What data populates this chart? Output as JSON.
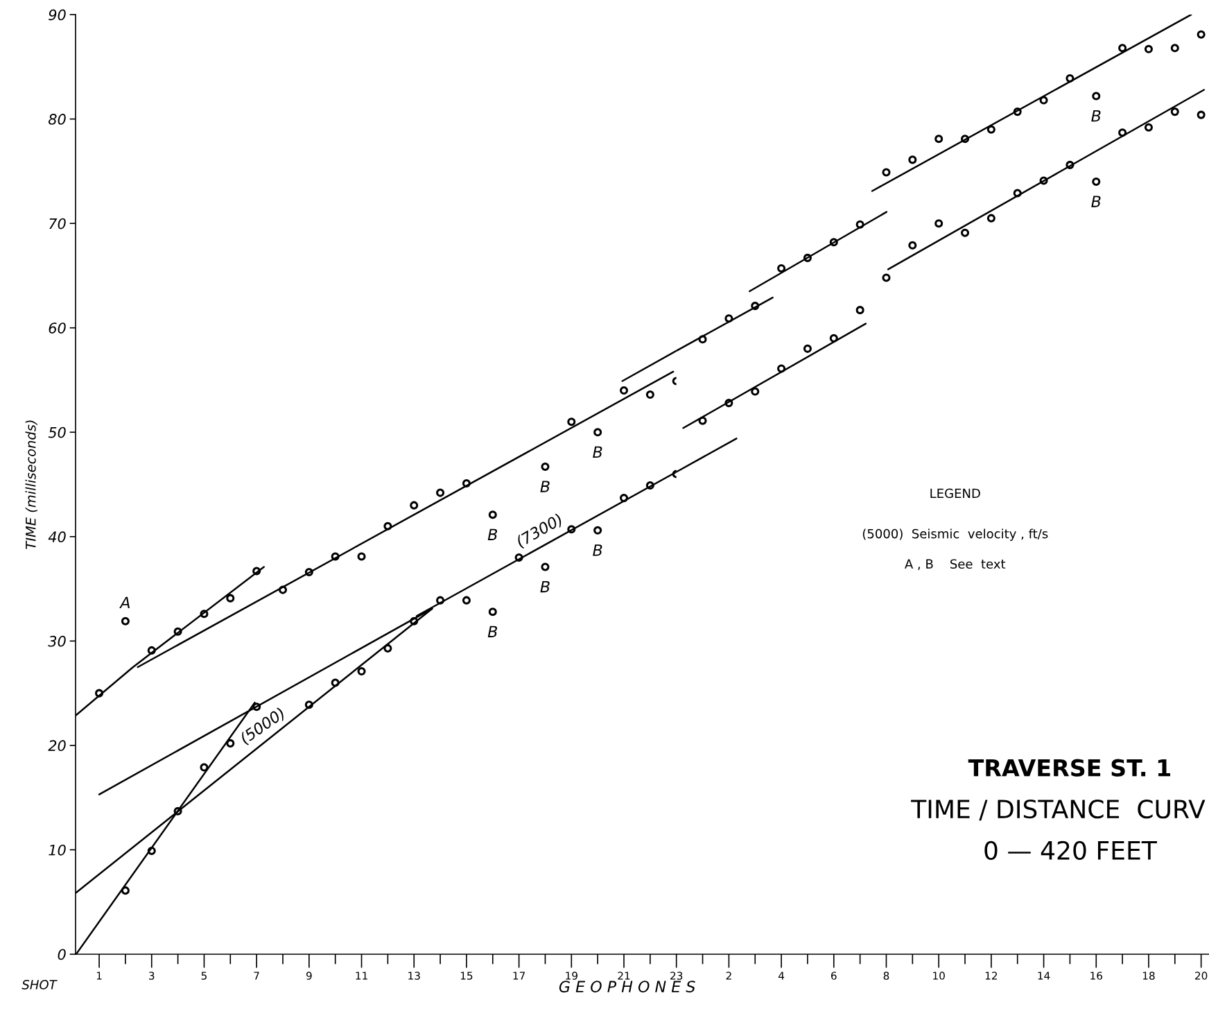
{
  "chart_data": [
    {
      "type": "scatter",
      "xlabel": "G E O P H O N E S",
      "ylabel": "TIME (milliseconds)",
      "xlim": [
        0.1,
        23
      ],
      "ylim": [
        0,
        90
      ],
      "yticks": [
        0,
        10,
        20,
        30,
        40,
        50,
        60,
        70,
        80,
        90
      ],
      "xticks": [
        1,
        {
          "value": 2,
          "label": null
        },
        3,
        {
          "value": 4,
          "label": null
        },
        5,
        {
          "value": 6,
          "label": null
        },
        7,
        {
          "value": 8,
          "label": null
        },
        9,
        {
          "value": 10,
          "label": null
        },
        11,
        {
          "value": 12,
          "label": null
        },
        13,
        {
          "value": 14,
          "label": null
        },
        15,
        {
          "value": 16,
          "label": null
        },
        17,
        {
          "value": 18,
          "label": null
        },
        19,
        {
          "value": 20,
          "label": null
        },
        21,
        {
          "value": 22,
          "label": null
        },
        23
      ],
      "grid": false,
      "line_style": "solid",
      "series": [
        {
          "marker": "circle",
          "color": "#000000",
          "x": [
            1,
            2,
            3,
            4,
            5,
            6,
            7,
            8,
            9,
            10,
            11,
            12,
            13,
            14,
            15,
            16,
            18,
            19,
            20,
            21,
            22,
            23
          ],
          "values": [
            25,
            31.9,
            29.1,
            30.9,
            32.6,
            34.1,
            36.7,
            34.9,
            36.6,
            38.1,
            38.1,
            41.0,
            43.0,
            44.2,
            45.1,
            42.1,
            46.7,
            51.0,
            50.0,
            54.0,
            53.6,
            54.9
          ]
        },
        {
          "marker": "circle",
          "color": "#000000",
          "x": [
            2,
            3,
            4,
            5,
            6,
            7,
            9,
            10,
            11,
            12,
            13,
            14,
            15,
            16,
            17,
            18,
            19,
            20,
            21,
            22,
            23
          ],
          "values": [
            6.1,
            9.9,
            13.7,
            17.9,
            20.2,
            23.7,
            23.9,
            26.0,
            27.1,
            29.3,
            31.9,
            33.9,
            33.9,
            32.8,
            38.0,
            37.1,
            40.7,
            40.6,
            43.7,
            44.9,
            46.0
          ]
        },
        {
          "type": "line",
          "color": "#000000",
          "x": [
            0.12,
            2.29,
            7.28
          ],
          "values": [
            22.9,
            27.5,
            37.1
          ]
        },
        {
          "type": "line",
          "color": "#000000",
          "x": [
            2.47,
            22.88
          ],
          "values": [
            27.5,
            55.8
          ]
        },
        {
          "type": "line",
          "color": "#000000",
          "x": [
            20.94,
            23
          ],
          "values": [
            54.9,
            57.8
          ]
        },
        {
          "type": "line",
          "color": "#000000",
          "x": [
            0.12,
            6.93
          ],
          "values": [
            0,
            24.1
          ]
        },
        {
          "type": "line",
          "color": "#000000",
          "x": [
            0.12,
            13.69
          ],
          "values": [
            5.9,
            33.1
          ]
        },
        {
          "type": "line",
          "color": "#000000",
          "x": [
            1.0,
            13.69
          ],
          "values": [
            15.3,
            33.1
          ]
        },
        {
          "type": "line",
          "color": "#000000",
          "x": [
            13.1,
            23
          ],
          "values": [
            32.4,
            46.2
          ]
        }
      ],
      "annotations": [
        {
          "text": "A",
          "x": 2,
          "y": 31.9
        },
        {
          "text": "B",
          "x": 16,
          "y": 42.1
        },
        {
          "text": "B",
          "x": 18,
          "y": 46.7
        },
        {
          "text": "B",
          "x": 20,
          "y": 50.0
        },
        {
          "text": "B",
          "x": 20,
          "y": 40.6
        },
        {
          "text": "B",
          "x": 18,
          "y": 37.1
        },
        {
          "text": "B",
          "x": 16,
          "y": 32.8
        },
        {
          "text": "(5000)",
          "x": 7.4,
          "y": 20.5
        },
        {
          "text": "(7300)",
          "x": 17.95,
          "y": 39.2
        },
        "SHOT"
      ]
    },
    {
      "type": "scatter",
      "title": "TRAVERSE ST. 1",
      "subtitle": "TIME / DISTANCE  CURV",
      "xlim": [
        0,
        20.3
      ],
      "ylim": [
        0,
        90
      ],
      "tick_labels": "x",
      "xticks": [
        {
          "value": 1,
          "label": null
        },
        2,
        {
          "value": 3,
          "label": null
        },
        4,
        {
          "value": 5,
          "label": null
        },
        6,
        {
          "value": 7,
          "label": null
        },
        8,
        {
          "value": 9,
          "label": null
        },
        10,
        {
          "value": 11,
          "label": null
        },
        12,
        {
          "value": 13,
          "label": null
        },
        14,
        {
          "value": 15,
          "label": null
        },
        16,
        {
          "value": 17,
          "label": null
        },
        18,
        {
          "value": 19,
          "label": null
        },
        20
      ],
      "grid": false,
      "line_style": "solid",
      "series": [
        {
          "marker": "circle",
          "color": "#000000",
          "x": [
            1,
            2,
            3,
            4,
            5,
            6,
            7,
            8,
            9,
            10,
            11,
            12,
            13,
            14,
            15,
            16,
            17,
            18,
            19,
            20
          ],
          "values": [
            58.9,
            60.9,
            62.1,
            65.7,
            66.7,
            68.2,
            69.9,
            74.9,
            76.1,
            78.1,
            78.1,
            79.0,
            80.7,
            81.8,
            83.9,
            82.2,
            86.8,
            86.7,
            86.8,
            88.1
          ]
        },
        {
          "marker": "circle",
          "color": "#000000",
          "x": [
            1,
            2,
            3,
            4,
            5,
            6,
            7,
            8,
            9,
            10,
            11,
            12,
            13,
            14,
            15,
            16,
            17,
            18,
            19,
            20
          ],
          "values": [
            51.1,
            52.8,
            53.9,
            56.1,
            58.0,
            59.0,
            61.7,
            64.8,
            67.9,
            70.0,
            69.1,
            70.5,
            72.9,
            74.1,
            75.6,
            74.0,
            78.7,
            79.2,
            80.7,
            80.4
          ]
        },
        {
          "type": "line",
          "color": "#000000",
          "x": [
            0,
            3.67
          ],
          "values": [
            57.8,
            62.9
          ]
        },
        {
          "type": "line",
          "color": "#000000",
          "x": [
            2.79,
            8.01
          ],
          "values": [
            63.5,
            71.1
          ]
        },
        {
          "type": "line",
          "color": "#000000",
          "x": [
            7.46,
            19.62
          ],
          "values": [
            73.1,
            90.0
          ]
        },
        {
          "type": "line",
          "color": "#000000",
          "x": [
            0,
            2.29
          ],
          "values": [
            46.2,
            49.4
          ]
        },
        {
          "type": "line",
          "color": "#000000",
          "x": [
            0.26,
            7.22
          ],
          "values": [
            50.4,
            60.4
          ]
        },
        {
          "type": "line",
          "color": "#000000",
          "x": [
            8.07,
            20.11
          ],
          "values": [
            65.6,
            82.8
          ]
        }
      ],
      "annotations": [
        {
          "text": "B",
          "x": 16,
          "y": 82.2
        },
        {
          "text": "B",
          "x": 16,
          "y": 74.0
        },
        "LEGEND",
        "(5000)  Seismic  velocity , ft/s",
        "A , B    See  text",
        "0 — 420 FEET"
      ]
    }
  ]
}
